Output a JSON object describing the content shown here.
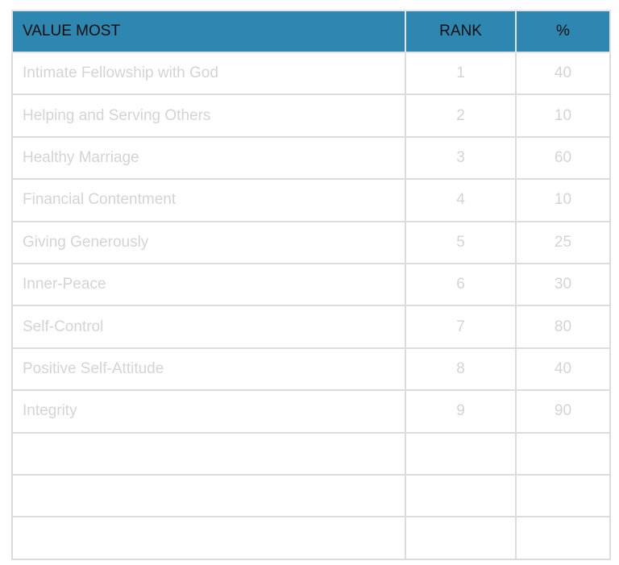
{
  "table": {
    "headers": [
      "VALUE MOST",
      "RANK",
      "%"
    ],
    "rows": [
      [
        "Intimate Fellowship with God",
        "1",
        "40"
      ],
      [
        "Helping and Serving Others",
        "2",
        "10"
      ],
      [
        "Healthy Marriage",
        "3",
        "60"
      ],
      [
        "Financial Contentment",
        "4",
        "10"
      ],
      [
        "Giving Generously",
        "5",
        "25"
      ],
      [
        "Inner-Peace",
        "6",
        "30"
      ],
      [
        "Self-Control",
        "7",
        "80"
      ],
      [
        "Positive Self-Attitude",
        "8",
        "40"
      ],
      [
        "Integrity",
        "9",
        "90"
      ],
      [
        "",
        "",
        ""
      ],
      [
        "",
        "",
        ""
      ],
      [
        "",
        "",
        ""
      ]
    ]
  },
  "colors": {
    "header_bg": "#2d87b0",
    "header_text": "#0d0d0d",
    "cell_text": "#d4d4d4",
    "grid": "#dcdcdc"
  }
}
